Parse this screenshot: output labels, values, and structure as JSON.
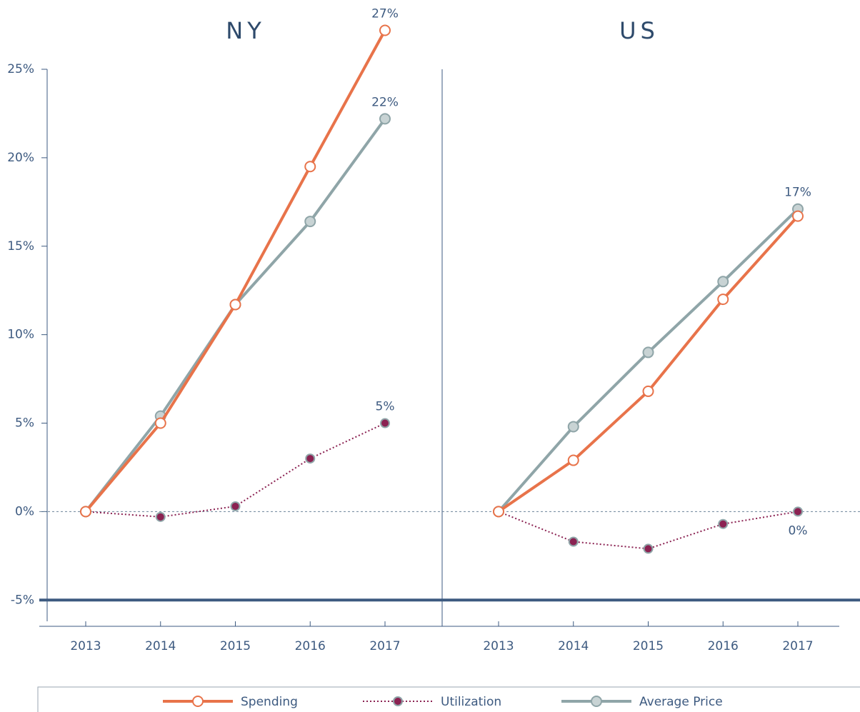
{
  "chart_data": [
    {
      "type": "line",
      "title": "NY",
      "categories": [
        "2013",
        "2014",
        "2015",
        "2016",
        "2017"
      ],
      "ylim": [
        -6.2,
        25
      ],
      "yticks": [
        {
          "value": -5,
          "label": "-5%"
        },
        {
          "value": 0,
          "label": "0%"
        },
        {
          "value": 5,
          "label": "5%"
        },
        {
          "value": 10,
          "label": "10%"
        },
        {
          "value": 15,
          "label": "15%"
        },
        {
          "value": 20,
          "label": "20%"
        },
        {
          "value": 25,
          "label": "25%"
        }
      ],
      "hlines": [
        {
          "value": 0,
          "style": "dashed"
        },
        {
          "value": -5,
          "style": "solid"
        }
      ],
      "legend": "bottom",
      "series": [
        {
          "name": "Spending",
          "color": "#e8734a",
          "marker_fill": "#ffffff",
          "style": "solid",
          "values": [
            0,
            5.0,
            11.7,
            19.5,
            27.2
          ],
          "value_labels": [
            null,
            null,
            null,
            null,
            "27%"
          ]
        },
        {
          "name": "Utilization",
          "color": "#8b2252",
          "marker_fill": "#8b2252",
          "style": "dotted",
          "values": [
            0,
            -0.3,
            0.3,
            3.0,
            5.0
          ],
          "value_labels": [
            null,
            null,
            null,
            null,
            "5%"
          ]
        },
        {
          "name": "Average Price",
          "color": "#8fa5a8",
          "marker_fill": "#c8d3d4",
          "style": "solid",
          "values": [
            0,
            5.4,
            11.7,
            16.4,
            22.2
          ],
          "value_labels": [
            null,
            null,
            null,
            null,
            "22%"
          ]
        }
      ]
    },
    {
      "type": "line",
      "title": "US",
      "categories": [
        "2013",
        "2014",
        "2015",
        "2016",
        "2017"
      ],
      "ylim": [
        -6.2,
        25
      ],
      "hlines": [
        {
          "value": 0,
          "style": "dashed"
        },
        {
          "value": -5,
          "style": "solid"
        }
      ],
      "series": [
        {
          "color": "#e8734a",
          "marker_fill": "#ffffff",
          "style": "solid",
          "values": [
            0,
            2.9,
            6.8,
            12.0,
            16.7
          ],
          "value_labels": [
            null,
            null,
            null,
            null,
            null
          ]
        },
        {
          "color": "#8b2252",
          "marker_fill": "#8b2252",
          "style": "dotted",
          "values": [
            0,
            -1.7,
            -2.1,
            -0.7,
            0.0
          ],
          "value_labels": [
            null,
            null,
            null,
            null,
            "0%"
          ]
        },
        {
          "color": "#8fa5a8",
          "marker_fill": "#c8d3d4",
          "style": "solid",
          "values": [
            0,
            4.8,
            9.0,
            13.0,
            17.1
          ],
          "value_labels": [
            null,
            null,
            null,
            null,
            "17%"
          ]
        }
      ]
    }
  ]
}
